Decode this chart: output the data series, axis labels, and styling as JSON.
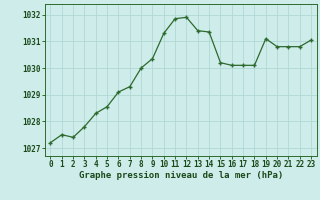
{
  "x": [
    0,
    1,
    2,
    3,
    4,
    5,
    6,
    7,
    8,
    9,
    10,
    11,
    12,
    13,
    14,
    15,
    16,
    17,
    18,
    19,
    20,
    21,
    22,
    23
  ],
  "y": [
    1027.2,
    1027.5,
    1027.4,
    1027.8,
    1028.3,
    1028.55,
    1029.1,
    1029.3,
    1030.0,
    1030.35,
    1031.3,
    1031.85,
    1031.9,
    1031.4,
    1031.35,
    1030.2,
    1030.1,
    1030.1,
    1030.1,
    1031.1,
    1030.8,
    1030.8,
    1030.8,
    1031.05
  ],
  "line_color": "#2d6a2d",
  "marker_color": "#2d6a2d",
  "bg_color": "#ceecea",
  "grid_color": "#b0d8d4",
  "title": "Graphe pression niveau de la mer (hPa)",
  "ylabel_ticks": [
    1027,
    1028,
    1029,
    1030,
    1031,
    1032
  ],
  "xlim": [
    -0.5,
    23.5
  ],
  "ylim": [
    1026.7,
    1032.4
  ],
  "title_color": "#1a4a1a",
  "title_fontsize": 6.5,
  "tick_fontsize": 5.5
}
